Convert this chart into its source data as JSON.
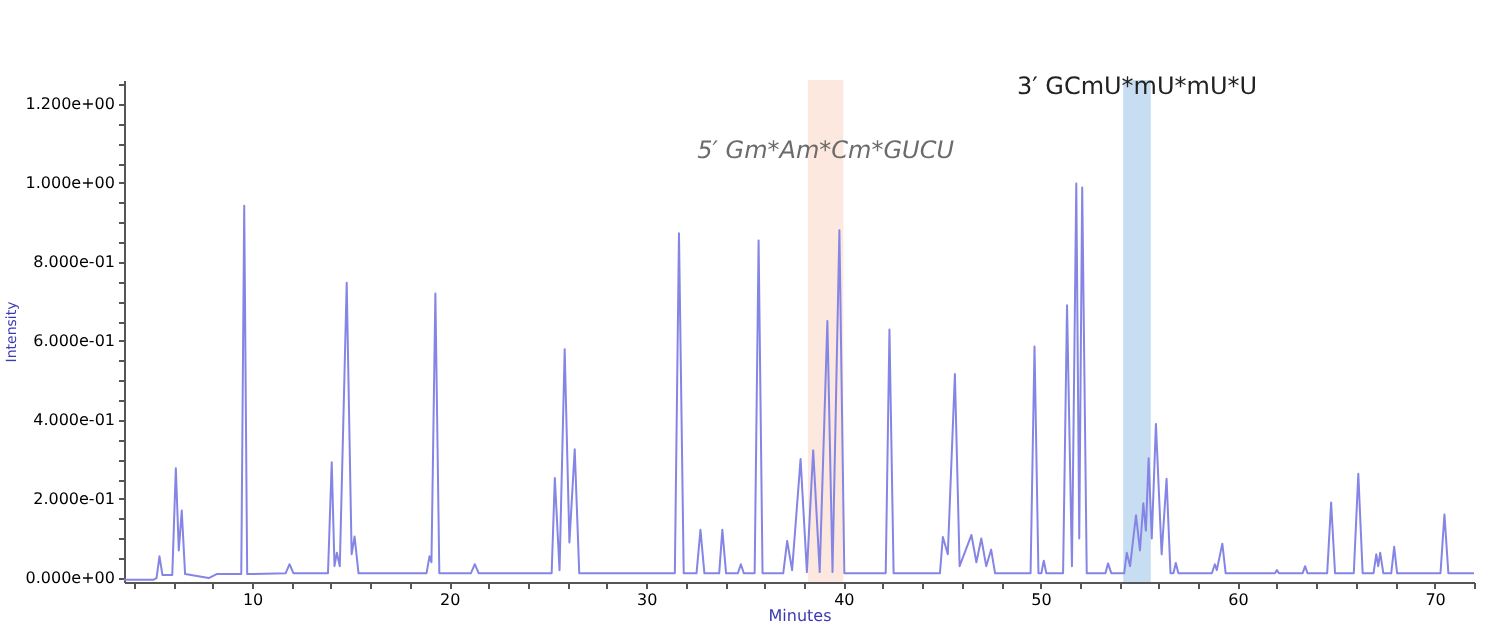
{
  "chart_data": {
    "type": "line",
    "xlabel": "Minutes",
    "ylabel": "Intensity",
    "x": [
      3.5,
      5.0,
      5.15,
      5.3,
      5.45,
      5.95,
      6.13,
      6.28,
      6.43,
      6.6,
      7.8,
      8.2,
      9.45,
      9.6,
      9.75,
      11.7,
      11.9,
      12.1,
      13.85,
      14.04,
      14.18,
      14.3,
      14.45,
      14.8,
      15.05,
      15.2,
      15.4,
      18.85,
      19.0,
      19.1,
      19.3,
      19.5,
      21.1,
      21.3,
      21.5,
      25.2,
      25.36,
      25.6,
      25.86,
      26.1,
      26.37,
      26.6,
      31.45,
      31.66,
      31.9,
      32.55,
      32.75,
      32.95,
      33.7,
      33.86,
      34.05,
      34.65,
      34.8,
      34.95,
      35.5,
      35.7,
      35.9,
      36.95,
      37.15,
      37.4,
      37.83,
      38.15,
      38.47,
      38.8,
      39.19,
      39.45,
      39.8,
      40.05,
      42.15,
      42.34,
      42.55,
      44.9,
      45.05,
      45.3,
      45.66,
      45.9,
      46.5,
      46.75,
      47.0,
      47.25,
      47.5,
      47.7,
      49.5,
      49.7,
      49.9,
      50.05,
      50.17,
      50.3,
      51.15,
      51.35,
      51.6,
      51.82,
      51.97,
      52.12,
      52.35,
      53.3,
      53.43,
      53.6,
      54.25,
      54.38,
      54.55,
      54.85,
      55.05,
      55.22,
      55.35,
      55.49,
      55.65,
      55.86,
      56.15,
      56.4,
      56.6,
      56.75,
      56.87,
      57.0,
      58.7,
      58.85,
      58.95,
      59.23,
      59.4,
      61.9,
      62.0,
      62.1,
      63.3,
      63.43,
      63.55,
      64.55,
      64.75,
      64.95,
      65.9,
      66.13,
      66.35,
      66.9,
      67.04,
      67.14,
      67.24,
      67.4,
      67.8,
      67.95,
      68.1,
      70.3,
      70.5,
      70.7,
      72.0
    ],
    "series": [
      {
        "color": "#8585e6",
        "values": [
          -0.004,
          -0.004,
          0.0,
          0.055,
          0.008,
          0.008,
          0.278,
          0.07,
          0.171,
          0.01,
          0.0,
          0.01,
          0.01,
          0.942,
          0.01,
          0.012,
          0.035,
          0.012,
          0.012,
          0.293,
          0.03,
          0.064,
          0.03,
          0.747,
          0.06,
          0.105,
          0.012,
          0.012,
          0.055,
          0.04,
          0.72,
          0.012,
          0.012,
          0.035,
          0.012,
          0.012,
          0.253,
          0.02,
          0.579,
          0.09,
          0.326,
          0.012,
          0.012,
          0.872,
          0.012,
          0.012,
          0.122,
          0.012,
          0.012,
          0.122,
          0.012,
          0.012,
          0.035,
          0.012,
          0.012,
          0.854,
          0.012,
          0.012,
          0.094,
          0.02,
          0.301,
          0.015,
          0.323,
          0.015,
          0.65,
          0.015,
          0.88,
          0.012,
          0.012,
          0.629,
          0.012,
          0.012,
          0.104,
          0.06,
          0.516,
          0.03,
          0.109,
          0.04,
          0.1,
          0.03,
          0.072,
          0.012,
          0.012,
          0.586,
          0.012,
          0.012,
          0.044,
          0.012,
          0.012,
          0.69,
          0.03,
          0.998,
          0.1,
          0.988,
          0.012,
          0.012,
          0.037,
          0.012,
          0.012,
          0.064,
          0.03,
          0.159,
          0.07,
          0.189,
          0.12,
          0.303,
          0.1,
          0.39,
          0.06,
          0.251,
          0.012,
          0.012,
          0.038,
          0.012,
          0.012,
          0.035,
          0.02,
          0.087,
          0.012,
          0.012,
          0.02,
          0.012,
          0.012,
          0.03,
          0.012,
          0.012,
          0.191,
          0.012,
          0.012,
          0.264,
          0.012,
          0.012,
          0.06,
          0.03,
          0.064,
          0.012,
          0.012,
          0.079,
          0.012,
          0.012,
          0.161,
          0.012,
          0.012
        ]
      }
    ],
    "xlim": [
      3.5,
      72.0
    ],
    "xticks": [
      {
        "value": 4,
        "label": null
      },
      {
        "value": 6,
        "label": null
      },
      {
        "value": 8,
        "label": null
      },
      10,
      {
        "value": 12,
        "label": null
      },
      {
        "value": 14,
        "label": null
      },
      {
        "value": 16,
        "label": null
      },
      {
        "value": 18,
        "label": null
      },
      20,
      {
        "value": 22,
        "label": null
      },
      {
        "value": 24,
        "label": null
      },
      {
        "value": 26,
        "label": null
      },
      {
        "value": 28,
        "label": null
      },
      30,
      {
        "value": 32,
        "label": null
      },
      {
        "value": 34,
        "label": null
      },
      {
        "value": 36,
        "label": null
      },
      {
        "value": 38,
        "label": null
      },
      40,
      {
        "value": 42,
        "label": null
      },
      {
        "value": 44,
        "label": null
      },
      {
        "value": 46,
        "label": null
      },
      {
        "value": 48,
        "label": null
      },
      50,
      {
        "value": 52,
        "label": null
      },
      {
        "value": 54,
        "label": null
      },
      {
        "value": 56,
        "label": null
      },
      {
        "value": 58,
        "label": null
      },
      60,
      {
        "value": 62,
        "label": null
      },
      {
        "value": 64,
        "label": null
      },
      {
        "value": 66,
        "label": null
      },
      {
        "value": 68,
        "label": null
      },
      70,
      {
        "value": 72,
        "label": null
      }
    ],
    "ylim": [
      -0.01,
      1.26
    ],
    "yticks": [
      {
        "value": 0,
        "label": "0.000e+00"
      },
      {
        "value": 0.05,
        "label": null
      },
      {
        "value": 0.1,
        "label": null
      },
      {
        "value": 0.15,
        "label": null
      },
      {
        "value": 0.2,
        "label": "2.000e-01"
      },
      {
        "value": 0.25,
        "label": null
      },
      {
        "value": 0.3,
        "label": null
      },
      {
        "value": 0.35,
        "label": null
      },
      {
        "value": 0.4,
        "label": "4.000e-01"
      },
      {
        "value": 0.45,
        "label": null
      },
      {
        "value": 0.5,
        "label": null
      },
      {
        "value": 0.55,
        "label": null
      },
      {
        "value": 0.6,
        "label": "6.000e-01"
      },
      {
        "value": 0.65,
        "label": null
      },
      {
        "value": 0.7,
        "label": null
      },
      {
        "value": 0.75,
        "label": null
      },
      {
        "value": 0.8,
        "label": "8.000e-01"
      },
      {
        "value": 0.85,
        "label": null
      },
      {
        "value": 0.9,
        "label": null
      },
      {
        "value": 0.95,
        "label": null
      },
      {
        "value": 1.0,
        "label": "1.000e+00"
      },
      {
        "value": 1.05,
        "label": null
      },
      {
        "value": 1.1,
        "label": null
      },
      {
        "value": 1.15,
        "label": null
      },
      {
        "value": 1.2,
        "label": "1.200e+00"
      },
      {
        "value": 1.25,
        "label": null
      }
    ],
    "bands": [
      {
        "axis": "x",
        "from": 38.2,
        "to": 40.0,
        "label": "5′  Gm*Am*Cm*GUCU",
        "color": "#fbe4d8"
      },
      {
        "axis": "x",
        "from": 54.2,
        "to": 55.6,
        "label": "3′  GCmU*mU*mU*U",
        "color": "#bdd7ee"
      }
    ],
    "grid": false,
    "line_style": "solid",
    "marker": "none"
  }
}
